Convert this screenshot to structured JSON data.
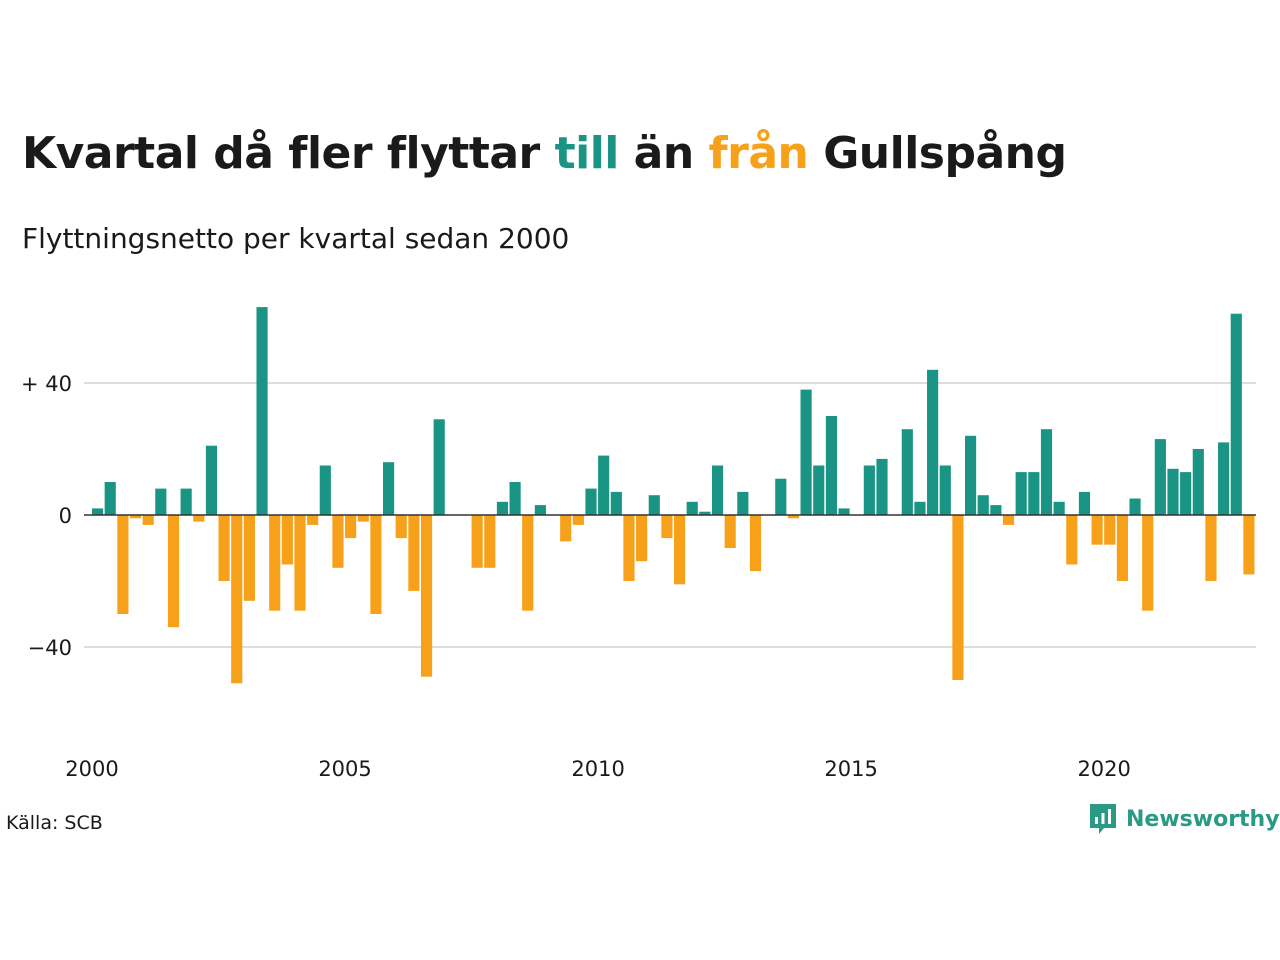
{
  "title": {
    "part1": "Kvartal då fler flyttar ",
    "till": "till",
    "part2": " än ",
    "fran": "från",
    "part3": " Gullspång"
  },
  "subtitle": "Flyttningsnetto per kvartal sedan 2000",
  "source": "Källa: SCB",
  "brand": "Newsworthy",
  "colors": {
    "positive": "#1a9585",
    "negative": "#f7a11b",
    "grid": "#dddddd",
    "text": "#1a1a1a"
  },
  "chart_data": {
    "type": "bar",
    "x_start": 2000,
    "x_ticks": [
      "2000",
      "2005",
      "2010",
      "2015",
      "2020"
    ],
    "y_ticks": [
      {
        "value": 40,
        "label": "+ 40"
      },
      {
        "value": 0,
        "label": "0"
      },
      {
        "value": -40,
        "label": "−40"
      }
    ],
    "ylim": [
      -55,
      65
    ],
    "values": [
      2,
      10,
      -30,
      -1,
      -3,
      8,
      -34,
      8,
      -2,
      21,
      -20,
      -51,
      -26,
      63,
      -29,
      -15,
      -29,
      -3,
      15,
      -16,
      -7,
      -2,
      -30,
      16,
      -7,
      -23,
      -49,
      29,
      0,
      0,
      -16,
      -16,
      4,
      10,
      -29,
      3,
      0,
      -8,
      -3,
      8,
      18,
      7,
      -20,
      -14,
      6,
      -7,
      -21,
      4,
      1,
      15,
      -10,
      7,
      -17,
      0,
      11,
      -1,
      38,
      15,
      30,
      2,
      0,
      15,
      17,
      0,
      26,
      4,
      44,
      15,
      -50,
      24,
      6,
      3,
      -3,
      13,
      13,
      26,
      4,
      -15,
      7,
      -9,
      -9,
      -20,
      5,
      -29,
      23,
      14,
      13,
      20,
      -20,
      22,
      61,
      -18
    ],
    "grid": true
  }
}
